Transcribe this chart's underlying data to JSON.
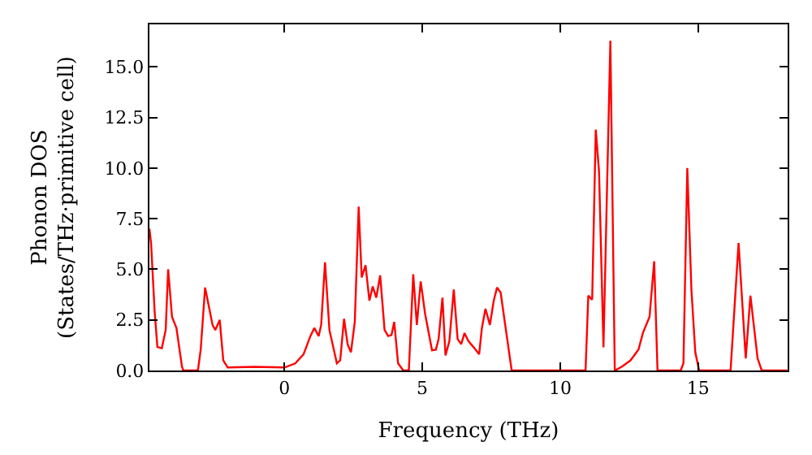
{
  "chart_data": {
    "type": "line",
    "xlabel": "Frequency (THz)",
    "ylabel": "Phonon DOS\n(States/THz·primitive cell)",
    "xlim": [
      -4.9,
      18.25
    ],
    "ylim": [
      0,
      17.1
    ],
    "xticks": [
      0,
      5,
      10,
      15
    ],
    "yticks": [
      {
        "value": 0,
        "label": "0.0"
      },
      {
        "value": 2.5,
        "label": "2.5"
      },
      {
        "value": 5,
        "label": "5.0"
      },
      {
        "value": 7.5,
        "label": "7.5"
      },
      {
        "value": 10,
        "label": "10.0"
      },
      {
        "value": 12.5,
        "label": "12.5"
      },
      {
        "value": 15,
        "label": "15.0"
      }
    ],
    "marker": "none",
    "line_style": "solid",
    "x": [
      -4.9,
      -4.84,
      -4.71,
      -4.61,
      -4.45,
      -4.31,
      -4.22,
      -4.08,
      -3.92,
      -3.72,
      -3.67,
      -3.14,
      -3.04,
      -2.88,
      -2.61,
      -2.51,
      -2.35,
      -2.22,
      -2.06,
      -1.08,
      0,
      0.39,
      0.69,
      0.94,
      1.08,
      1.24,
      1.33,
      1.47,
      1.63,
      1.9,
      2.02,
      2.16,
      2.29,
      2.41,
      2.55,
      2.69,
      2.8,
      2.94,
      3.08,
      3.2,
      3.33,
      3.47,
      3.63,
      3.76,
      3.88,
      3.98,
      4.12,
      4.31,
      4.51,
      4.67,
      4.8,
      4.94,
      5.1,
      5.35,
      5.49,
      5.59,
      5.73,
      5.84,
      5.98,
      6.14,
      6.28,
      6.41,
      6.53,
      6.67,
      6.86,
      7.06,
      7.16,
      7.29,
      7.45,
      7.59,
      7.71,
      7.84,
      7.98,
      8.24,
      10.92,
      11.02,
      11.16,
      11.29,
      11.41,
      11.57,
      11.82,
      11.98,
      12.25,
      12.55,
      12.84,
      13.0,
      13.24,
      13.41,
      13.53,
      14.37,
      14.47,
      14.61,
      14.76,
      14.9,
      15.04,
      16.18,
      16.47,
      16.73,
      16.9,
      17.16,
      17.31,
      18.24
    ],
    "series": [
      {
        "color": "#ff0000",
        "values": [
          7.0,
          6.3,
          2.9,
          1.16,
          1.1,
          2.0,
          5.0,
          2.65,
          2.1,
          0.2,
          0,
          0,
          1.03,
          4.1,
          2.25,
          2.0,
          2.5,
          0.5,
          0.15,
          0.18,
          0.15,
          0.35,
          0.8,
          1.7,
          2.1,
          1.7,
          2.25,
          5.35,
          2.0,
          0.35,
          0.5,
          2.55,
          1.3,
          0.9,
          2.4,
          8.1,
          4.6,
          5.2,
          3.45,
          4.15,
          3.6,
          4.7,
          2.0,
          1.7,
          1.75,
          2.4,
          0.35,
          0,
          0,
          4.75,
          2.25,
          4.4,
          2.8,
          1.0,
          1.03,
          1.55,
          3.6,
          0.75,
          1.45,
          4.0,
          1.55,
          1.3,
          1.85,
          1.45,
          1.15,
          0.8,
          2.1,
          3.05,
          2.25,
          3.45,
          4.1,
          3.85,
          2.5,
          0,
          0,
          3.7,
          3.5,
          11.9,
          9.8,
          1.15,
          16.3,
          0,
          0.2,
          0.5,
          1.03,
          1.85,
          2.65,
          5.4,
          0,
          0,
          0.35,
          10.0,
          4.0,
          0.9,
          0,
          0,
          6.3,
          0.6,
          3.7,
          0.6,
          0,
          0
        ]
      }
    ]
  }
}
